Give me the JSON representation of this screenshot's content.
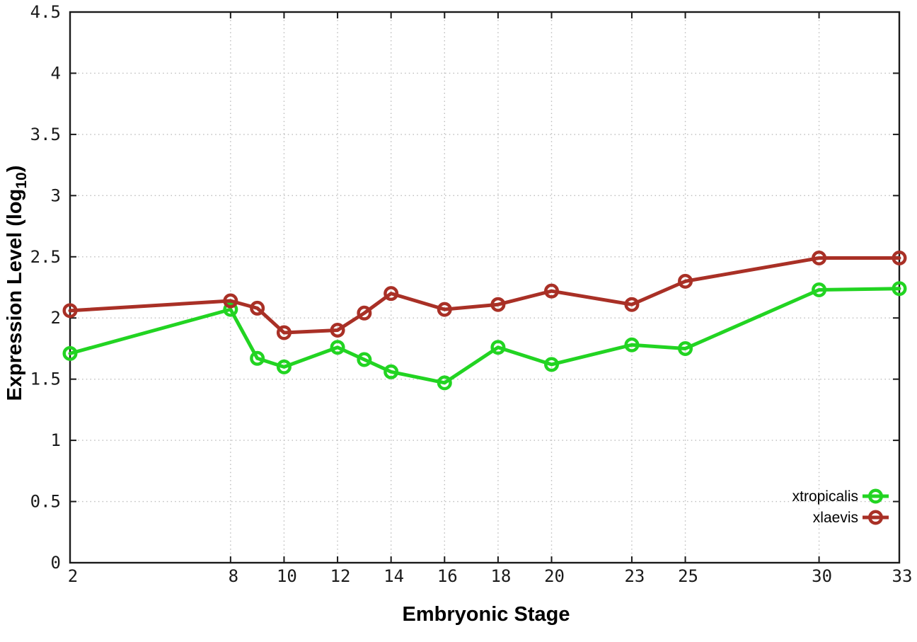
{
  "chart_data": {
    "type": "line",
    "title": "",
    "xlabel": "Embryonic Stage",
    "ylabel": "Expression Level (log10)",
    "ylabel_parts": {
      "main": "Expression Level (log",
      "sub": "10",
      "close": ")"
    },
    "x": [
      2,
      8,
      9,
      10,
      12,
      13,
      14,
      16,
      18,
      20,
      23,
      25,
      30,
      33
    ],
    "xticks": [
      2,
      8,
      10,
      12,
      14,
      16,
      18,
      20,
      23,
      25,
      30,
      33
    ],
    "yticks": [
      0,
      0.5,
      1,
      1.5,
      2,
      2.5,
      3,
      3.5,
      4,
      4.5
    ],
    "xlim": [
      2,
      33
    ],
    "ylim": [
      0,
      4.5
    ],
    "grid": true,
    "legend_position": "bottom-right-inside",
    "series": [
      {
        "name": "xtropicalis",
        "color": "#22d422",
        "values": [
          1.71,
          2.07,
          1.67,
          1.6,
          1.76,
          1.66,
          1.56,
          1.47,
          1.76,
          1.62,
          1.78,
          1.75,
          2.23,
          2.24
        ]
      },
      {
        "name": "xlaevis",
        "color": "#a93026",
        "values": [
          2.06,
          2.14,
          2.08,
          1.88,
          1.9,
          2.04,
          2.2,
          2.07,
          2.11,
          2.22,
          2.11,
          2.3,
          2.49,
          2.49
        ]
      }
    ]
  },
  "style": {
    "background": "#ffffff",
    "grid_color": "#bcbcbc",
    "axis_color": "#1a1a1a",
    "text_color": "#000000"
  }
}
